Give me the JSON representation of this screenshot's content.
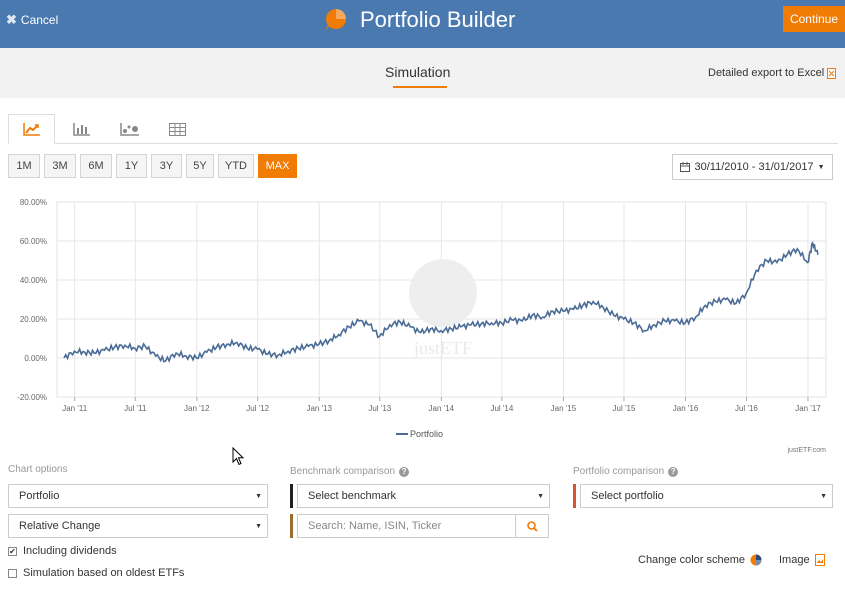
{
  "header": {
    "cancel_label": "Cancel",
    "title": "Portfolio Builder",
    "continue_label": "Continue",
    "logo_icon": "pie-logo-icon",
    "accent": "#f07b05",
    "bar_color": "#4a79b0"
  },
  "subnav": {
    "tab_label": "Simulation",
    "export_label": "Detailed export to Excel"
  },
  "view_tabs": [
    {
      "name": "line-chart",
      "icon": "line-chart-icon",
      "active": true
    },
    {
      "name": "bar-chart",
      "icon": "bar-chart-icon",
      "active": false
    },
    {
      "name": "scatter-chart",
      "icon": "scatter-chart-icon",
      "active": false
    },
    {
      "name": "table",
      "icon": "table-icon",
      "active": false
    }
  ],
  "ranges": [
    "1M",
    "3M",
    "6M",
    "1Y",
    "3Y",
    "5Y",
    "YTD",
    "MAX"
  ],
  "active_range": "MAX",
  "date_range": "30/11/2010 - 31/01/2017",
  "chart_data": {
    "type": "line",
    "x_tick_labels": [
      "Jan '11",
      "Jul '11",
      "Jan '12",
      "Jul '12",
      "Jan '13",
      "Jul '13",
      "Jan '14",
      "Jul '14",
      "Jan '15",
      "Jul '15",
      "Jan '16",
      "Jul '16",
      "Jan '17"
    ],
    "y_tick_labels": [
      "80.00%",
      "60.00%",
      "40.00%",
      "20.00%",
      "0.00%",
      "-20.00%"
    ],
    "ylim": [
      -20,
      80
    ],
    "grid": true,
    "legend_position": "bottom",
    "watermark": "justETF",
    "credit": "justETF.com",
    "series": [
      {
        "name": "Portfolio",
        "color": "#4a6b95",
        "x": [
          "2010-11-30",
          "2010-12-31",
          "2011-01-31",
          "2011-02-28",
          "2011-03-31",
          "2011-04-30",
          "2011-05-31",
          "2011-06-30",
          "2011-07-31",
          "2011-08-31",
          "2011-09-30",
          "2011-10-31",
          "2011-11-30",
          "2011-12-31",
          "2012-01-31",
          "2012-02-29",
          "2012-03-31",
          "2012-04-30",
          "2012-05-31",
          "2012-06-30",
          "2012-07-31",
          "2012-08-31",
          "2012-09-30",
          "2012-10-31",
          "2012-11-30",
          "2012-12-31",
          "2013-01-31",
          "2013-02-28",
          "2013-03-31",
          "2013-04-30",
          "2013-05-31",
          "2013-06-30",
          "2013-07-31",
          "2013-08-31",
          "2013-09-30",
          "2013-10-31",
          "2013-11-30",
          "2013-12-31",
          "2014-01-31",
          "2014-02-28",
          "2014-03-31",
          "2014-04-30",
          "2014-05-31",
          "2014-06-30",
          "2014-07-31",
          "2014-08-31",
          "2014-09-30",
          "2014-10-31",
          "2014-11-30",
          "2014-12-31",
          "2015-01-31",
          "2015-02-28",
          "2015-03-31",
          "2015-04-30",
          "2015-05-31",
          "2015-06-30",
          "2015-07-31",
          "2015-08-31",
          "2015-09-30",
          "2015-10-31",
          "2015-11-30",
          "2015-12-31",
          "2016-01-31",
          "2016-02-29",
          "2016-03-31",
          "2016-04-30",
          "2016-05-31",
          "2016-06-30",
          "2016-07-31",
          "2016-08-31",
          "2016-09-30",
          "2016-10-31",
          "2016-11-30",
          "2016-12-31",
          "2017-01-15",
          "2017-01-31"
        ],
        "values": [
          0.0,
          3.5,
          3.0,
          2.5,
          4.0,
          5.5,
          6.5,
          5.0,
          6.0,
          1.0,
          -1.5,
          2.5,
          1.0,
          0.0,
          3.0,
          5.5,
          7.0,
          8.0,
          5.0,
          4.5,
          2.0,
          1.5,
          3.5,
          5.0,
          6.0,
          7.0,
          9.0,
          12.0,
          16.0,
          19.0,
          17.0,
          11.0,
          17.0,
          18.5,
          16.0,
          13.0,
          15.0,
          14.0,
          15.0,
          16.0,
          17.0,
          17.5,
          18.0,
          18.0,
          19.5,
          19.0,
          22.0,
          21.0,
          24.0,
          24.0,
          25.0,
          27.0,
          29.0,
          26.0,
          22.0,
          20.0,
          18.0,
          14.0,
          17.0,
          19.0,
          19.0,
          18.0,
          21.0,
          27.0,
          29.0,
          30.0,
          28.0,
          33.0,
          45.0,
          50.0,
          49.0,
          53.0,
          56.0,
          49.0,
          59.0,
          53.0
        ]
      }
    ]
  },
  "chart_options": {
    "label": "Chart options",
    "series_select": "Portfolio",
    "mode_select": "Relative Change"
  },
  "benchmark": {
    "label": "Benchmark comparison",
    "select": "Select benchmark",
    "search_placeholder": "Search: Name, ISIN, Ticker",
    "bar_color_1": "#222222",
    "bar_color_2": "#9c6b2e"
  },
  "portfolio_compare": {
    "label": "Portfolio comparison",
    "select": "Select portfolio",
    "bar_color": "#d9532c"
  },
  "checkboxes": [
    {
      "label": "Including dividends",
      "checked": true
    },
    {
      "label": "Simulation based on oldest ETFs",
      "checked": false
    }
  ],
  "footer": {
    "color_scheme_label": "Change color scheme",
    "image_label": "Image"
  }
}
